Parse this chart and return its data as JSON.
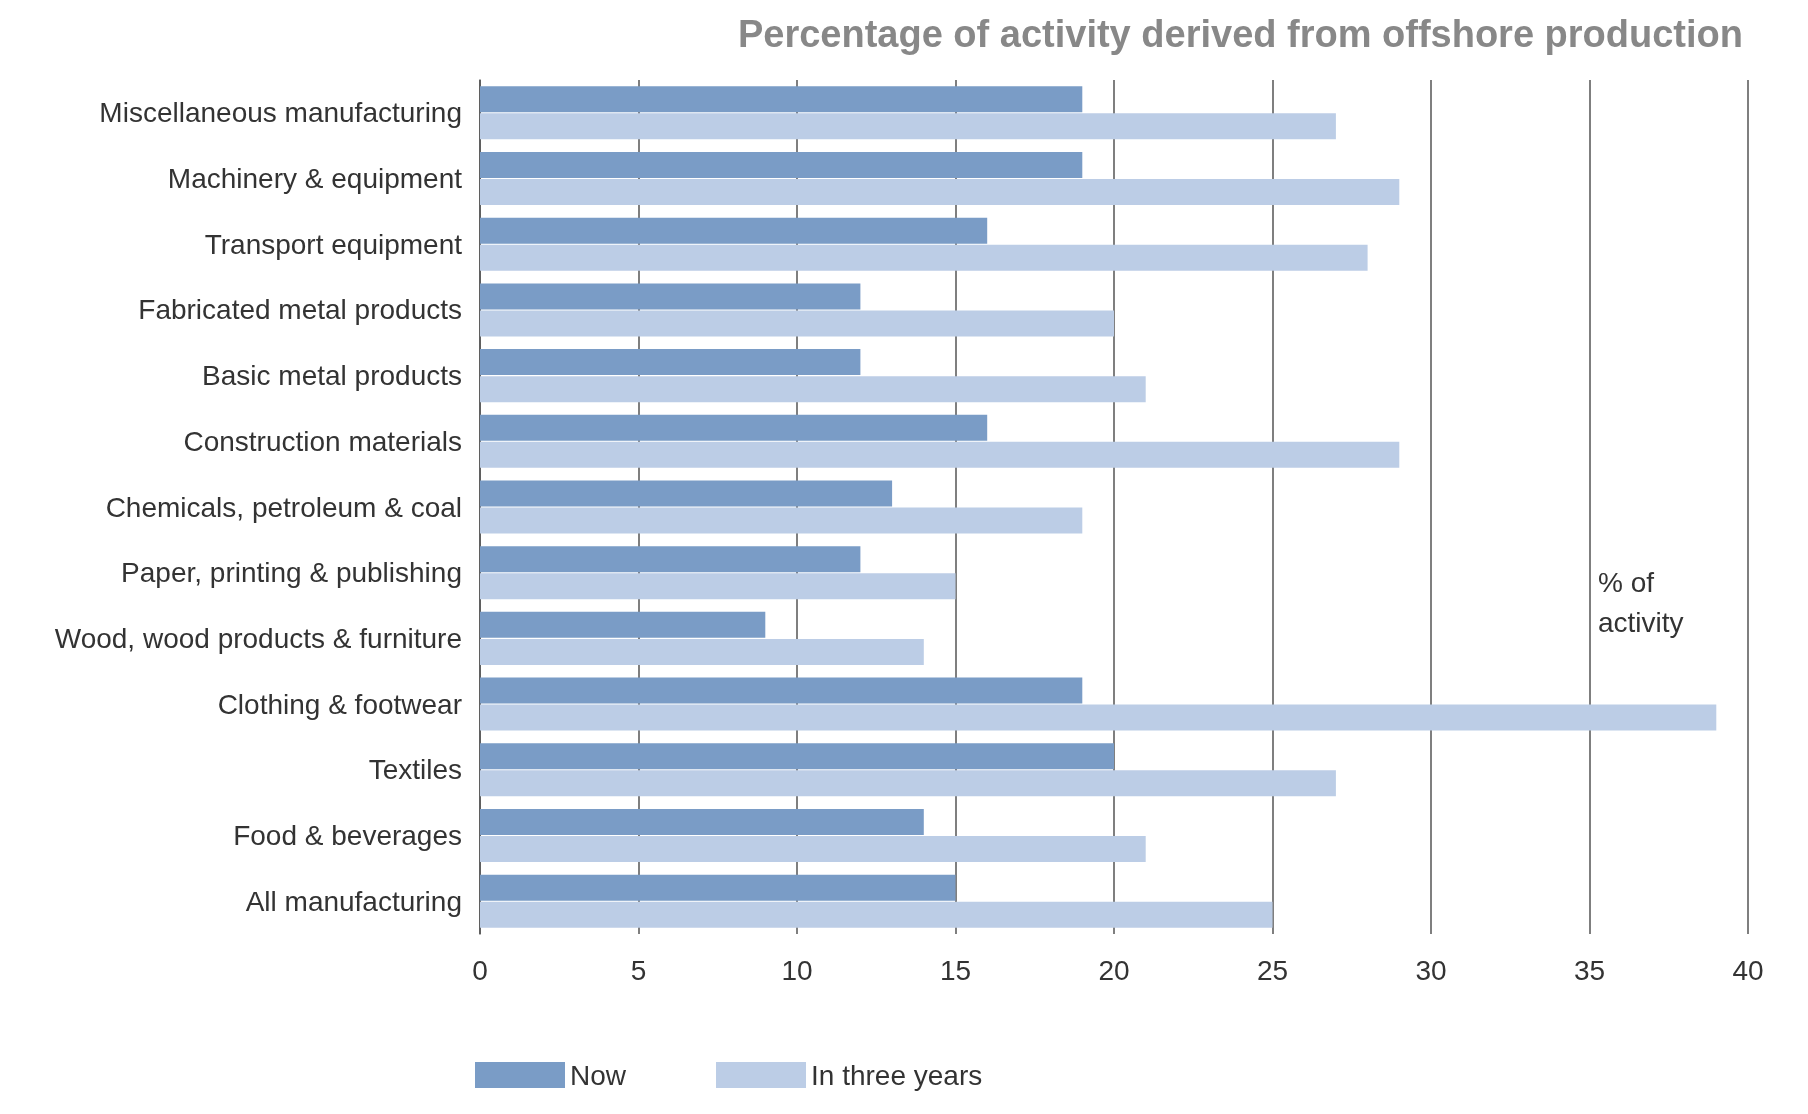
{
  "chart_data": {
    "type": "bar",
    "orientation": "horizontal",
    "title": "Percentage of activity derived from offshore production",
    "xlabel": "% of activity",
    "categories": [
      "Miscellaneous manufacturing",
      "Machinery & equipment",
      "Transport equipment",
      "Fabricated metal products",
      "Basic metal products",
      "Construction materials",
      "Chemicals, petroleum & coal",
      "Paper, printing & publishing",
      "Wood, wood products & furniture",
      "Clothing & footwear",
      "Textiles",
      "Food & beverages",
      "All manufacturing"
    ],
    "series": [
      {
        "name": "Now",
        "color": "#7a9cc6",
        "values": [
          19,
          19,
          16,
          12,
          12,
          16,
          13,
          12,
          9,
          19,
          20,
          14,
          15
        ]
      },
      {
        "name": "In three years",
        "color": "#bccde6",
        "values": [
          27,
          29,
          28,
          20,
          21,
          29,
          19,
          15,
          14,
          39,
          27,
          21,
          25
        ]
      }
    ],
    "xlim": [
      0,
      40
    ],
    "xticks": [
      0,
      5,
      10,
      15,
      20,
      25,
      30,
      35,
      40
    ],
    "grid": "x",
    "legend": "bottom"
  }
}
